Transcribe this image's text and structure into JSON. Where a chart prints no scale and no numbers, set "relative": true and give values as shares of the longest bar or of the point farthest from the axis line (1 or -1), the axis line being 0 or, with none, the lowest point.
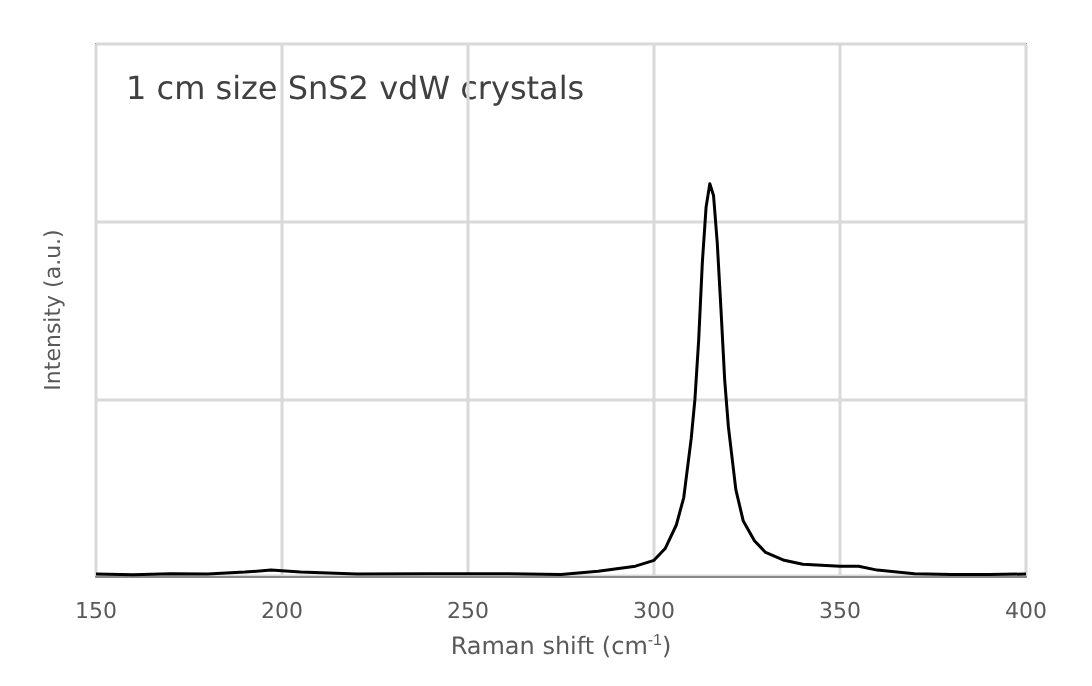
{
  "chart_data": {
    "type": "line",
    "relative": true,
    "xlabel": "Raman shift (cm$^{-1}$)",
    "ylabel": "Intensity (a.u.)",
    "annotations": [
      "1 cm size SnS2 vdW crystals"
    ],
    "x": [
      150,
      160,
      170,
      180,
      190,
      197,
      205,
      220,
      240,
      260,
      275,
      285,
      295,
      300,
      303,
      306,
      308,
      310,
      311,
      312,
      313,
      314,
      315,
      316,
      317,
      318,
      319,
      320,
      322,
      324,
      327,
      330,
      335,
      340,
      350,
      355,
      360,
      370,
      380,
      390,
      400
    ],
    "series": [
      {
        "color": "#000000",
        "values": [
          0.005,
          0.003,
          0.006,
          0.005,
          0.01,
          0.015,
          0.01,
          0.005,
          0.006,
          0.006,
          0.004,
          0.012,
          0.025,
          0.04,
          0.07,
          0.13,
          0.2,
          0.35,
          0.45,
          0.6,
          0.8,
          0.94,
          1,
          0.97,
          0.85,
          0.68,
          0.5,
          0.38,
          0.22,
          0.14,
          0.09,
          0.06,
          0.04,
          0.03,
          0.025,
          0.025,
          0.015,
          0.006,
          0.004,
          0.004,
          0.005
        ]
      }
    ],
    "xlim": [
      150,
      400
    ],
    "xticks": [
      150,
      200,
      250,
      300,
      350,
      400
    ],
    "grid": true
  }
}
